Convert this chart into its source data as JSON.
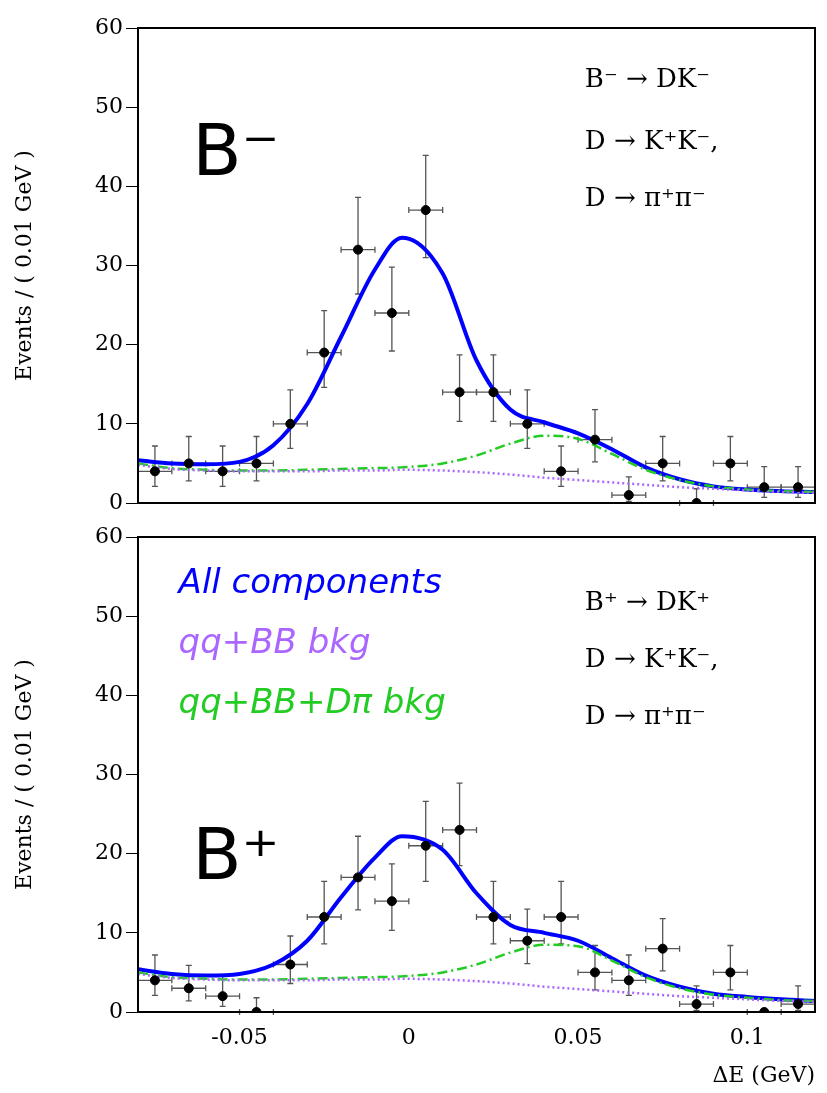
{
  "chart_data": [
    {
      "type": "scatter",
      "ylabel": "Events / ( 0.01 GeV )",
      "xlim": [
        -0.08,
        0.12
      ],
      "ylim": [
        0,
        60
      ],
      "xticks": [
        -0.05,
        0,
        0.05,
        0.1
      ],
      "yticks": [
        0,
        10,
        20,
        30,
        40,
        50,
        60
      ],
      "tick_labels": "y",
      "grid": false,
      "legend": false,
      "annotations": [
        "B⁻",
        "B⁻ → DK⁻",
        "D → K⁺K⁻,",
        "D → π⁺π⁻"
      ],
      "x": [
        -0.075,
        -0.065,
        -0.055,
        -0.045,
        -0.035,
        -0.025,
        -0.015,
        -0.005,
        0.005,
        0.015,
        0.025,
        0.035,
        0.045,
        0.055,
        0.065,
        0.075,
        0.085,
        0.095,
        0.105,
        0.115
      ],
      "series": [
        {
          "type": "scatter",
          "color": "#000000",
          "marker": "circle",
          "values": [
            4,
            5,
            4,
            5,
            10,
            19,
            32,
            24,
            37,
            14,
            14,
            10,
            4,
            8,
            1,
            5,
            0,
            5,
            2,
            2
          ],
          "errors": [
            [
              2.1,
              7.2
            ],
            [
              2.8,
              8.4
            ],
            [
              2.1,
              7.2
            ],
            [
              2.8,
              8.4
            ],
            [
              6.9,
              14.3
            ],
            [
              14.6,
              24.3
            ],
            [
              26.4,
              38.6
            ],
            [
              19.2,
              29.8
            ],
            [
              31,
              43.9
            ],
            [
              10.3,
              18.7
            ],
            [
              10.3,
              18.7
            ],
            [
              6.9,
              14.3
            ],
            [
              2.1,
              7.2
            ],
            [
              5.2,
              11.8
            ],
            [
              0.2,
              3.3
            ],
            [
              2.8,
              8.4
            ],
            [
              0,
              1.8
            ],
            [
              2.8,
              8.4
            ],
            [
              0.7,
              4.6
            ],
            [
              0.7,
              4.6
            ]
          ],
          "xerrors": [
            0.005,
            0.005,
            0.005,
            0.005,
            0.005,
            0.005,
            0.005,
            0.005,
            0.005,
            0.005,
            0.005,
            0.005,
            0.005,
            0.005,
            0.005,
            0.005,
            0.005,
            0.005,
            0.005,
            0.005
          ]
        },
        {
          "type": "line",
          "color": "#aa66ff",
          "line_style": "dotted",
          "x": [
            -0.08,
            -0.07,
            -0.06,
            -0.05,
            -0.04,
            -0.03,
            -0.02,
            -0.01,
            -0.002,
            0.01,
            0.02,
            0.03,
            0.04,
            0.05,
            0.06,
            0.07,
            0.08,
            0.09,
            0.1,
            0.11,
            0.12
          ],
          "values": [
            4.8,
            4.3,
            4.1,
            4.0,
            4.0,
            4.0,
            4.1,
            4.1,
            4.2,
            4.1,
            3.9,
            3.6,
            3.2,
            2.9,
            2.6,
            2.3,
            2.0,
            1.8,
            1.6,
            1.4,
            1.3
          ]
        },
        {
          "type": "line",
          "color": "#22cc22",
          "line_style": "dashed",
          "x": [
            -0.08,
            -0.07,
            -0.06,
            -0.05,
            -0.04,
            -0.03,
            -0.02,
            -0.01,
            -0.002,
            0.01,
            0.02,
            0.03,
            0.04,
            0.05,
            0.06,
            0.07,
            0.08,
            0.09,
            0.1,
            0.11,
            0.12
          ],
          "values": [
            5.0,
            4.4,
            4.2,
            4.1,
            4.1,
            4.2,
            4.3,
            4.4,
            4.5,
            5,
            6,
            7.5,
            8.5,
            8.1,
            6.2,
            4.2,
            2.9,
            2.1,
            1.7,
            1.5,
            1.4
          ]
        },
        {
          "type": "line",
          "color": "#0000ff",
          "line_style": "solid",
          "x": [
            -0.08,
            -0.07,
            -0.06,
            -0.05,
            -0.04,
            -0.03,
            -0.02,
            -0.01,
            -0.002,
            0.01,
            0.02,
            0.03,
            0.04,
            0.05,
            0.06,
            0.07,
            0.08,
            0.09,
            0.1,
            0.11,
            0.12
          ],
          "values": [
            5.4,
            5.0,
            4.9,
            5.2,
            7.3,
            12.5,
            21,
            29.5,
            33.5,
            29,
            18,
            11.8,
            10.2,
            8.8,
            6.8,
            4.5,
            3,
            2.1,
            1.7,
            1.5,
            1.4
          ]
        }
      ]
    },
    {
      "type": "scatter",
      "ylabel": "Events / ( 0.01 GeV )",
      "xlabel": "ΔE (GeV)",
      "xlim": [
        -0.08,
        0.12
      ],
      "ylim": [
        0,
        60
      ],
      "xticks": [
        -0.05,
        0,
        0.05,
        0.1
      ],
      "yticks": [
        0,
        10,
        20,
        30,
        40,
        50,
        60
      ],
      "grid": false,
      "legend": "top left",
      "annotations": [
        "B⁺",
        "B⁺ → DK⁺",
        "D → K⁺K⁻,",
        "D → π⁺π⁻"
      ],
      "x": [
        -0.075,
        -0.065,
        -0.055,
        -0.045,
        -0.035,
        -0.025,
        -0.015,
        -0.005,
        0.005,
        0.015,
        0.025,
        0.035,
        0.045,
        0.055,
        0.065,
        0.075,
        0.085,
        0.095,
        0.105,
        0.115
      ],
      "series": [
        {
          "type": "scatter",
          "color": "#000000",
          "marker": "circle",
          "values": [
            4,
            3,
            2,
            0,
            6,
            12,
            17,
            14,
            21,
            23,
            12,
            9,
            12,
            5,
            4,
            8,
            1,
            5,
            0,
            1
          ],
          "errors": [
            [
              2.1,
              7.2
            ],
            [
              1.4,
              5.9
            ],
            [
              0.7,
              4.6
            ],
            [
              0,
              1.8
            ],
            [
              3.6,
              9.6
            ],
            [
              8.6,
              16.5
            ],
            [
              12.9,
              22.2
            ],
            [
              10.3,
              18.7
            ],
            [
              16.5,
              26.6
            ],
            [
              18.5,
              28.9
            ],
            [
              8.6,
              16.5
            ],
            [
              6.1,
              13
            ],
            [
              8.6,
              16.5
            ],
            [
              2.8,
              8.4
            ],
            [
              2.1,
              7.2
            ],
            [
              5.2,
              11.8
            ],
            [
              0.2,
              3.3
            ],
            [
              2.8,
              8.4
            ],
            null,
            [
              0.2,
              3.3
            ]
          ],
          "xerrors": [
            0.005,
            0.005,
            0.005,
            0.005,
            0.005,
            0.005,
            0.005,
            0.005,
            0.005,
            0.005,
            0.005,
            0.005,
            0.005,
            0.005,
            0.005,
            0.005,
            0.005,
            0.005,
            0.005,
            0.005
          ]
        },
        {
          "type": "line",
          "name": "All components",
          "color": "#0000ff",
          "line_style": "solid",
          "x": [
            -0.08,
            -0.07,
            -0.06,
            -0.05,
            -0.04,
            -0.03,
            -0.02,
            -0.01,
            -0.002,
            0.01,
            0.02,
            0.03,
            0.04,
            0.05,
            0.06,
            0.07,
            0.08,
            0.09,
            0.1,
            0.11,
            0.12
          ],
          "values": [
            5.4,
            4.8,
            4.6,
            4.8,
            6,
            9,
            14.5,
            19.5,
            22.2,
            20.5,
            15,
            11,
            10,
            9,
            6.8,
            4.6,
            3.2,
            2.3,
            1.9,
            1.6,
            1.4
          ]
        },
        {
          "type": "line",
          "name": "qq+BB bkg",
          "color": "#aa66ff",
          "line_style": "dotted",
          "x": [
            -0.08,
            -0.07,
            -0.06,
            -0.05,
            -0.04,
            -0.03,
            -0.02,
            -0.01,
            -0.002,
            0.01,
            0.02,
            0.03,
            0.04,
            0.05,
            0.06,
            0.07,
            0.08,
            0.09,
            0.1,
            0.11,
            0.12
          ],
          "values": [
            4.8,
            4.3,
            4.1,
            4.0,
            4.0,
            4.0,
            4.1,
            4.1,
            4.2,
            4.1,
            3.9,
            3.6,
            3.2,
            2.9,
            2.6,
            2.3,
            2.0,
            1.8,
            1.6,
            1.4,
            1.3
          ]
        },
        {
          "type": "line",
          "name": "qq+BB+Dπ bkg",
          "color": "#22cc22",
          "line_style": "dashed",
          "x": [
            -0.08,
            -0.07,
            -0.06,
            -0.05,
            -0.04,
            -0.03,
            -0.02,
            -0.01,
            -0.002,
            0.01,
            0.02,
            0.03,
            0.04,
            0.05,
            0.06,
            0.07,
            0.08,
            0.09,
            0.1,
            0.11,
            0.12
          ],
          "values": [
            5.0,
            4.4,
            4.2,
            4.1,
            4.1,
            4.2,
            4.3,
            4.4,
            4.5,
            5,
            6,
            7.5,
            8.5,
            8.3,
            6.5,
            4.4,
            3.0,
            2.2,
            1.8,
            1.5,
            1.4
          ]
        }
      ]
    }
  ]
}
